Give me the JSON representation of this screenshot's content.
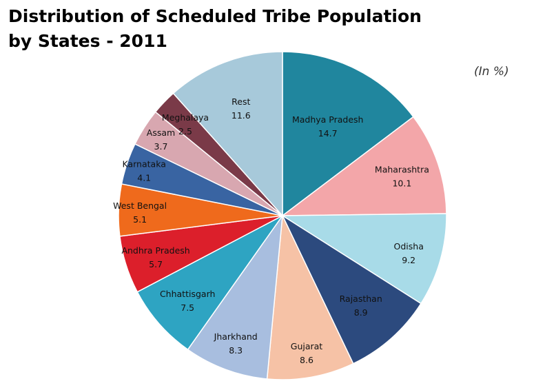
{
  "chart_data": {
    "type": "pie",
    "title_lines": [
      "Distribution of Scheduled Tribe Population",
      "by States - 2011"
    ],
    "unit": "(In %)",
    "start": "top, clockwise",
    "slices": [
      {
        "label": "Madhya Pradesh",
        "value": 14.7,
        "display": "14.7",
        "color": "#20869e"
      },
      {
        "label": "Maharashtra",
        "value": 10.1,
        "display": "10.1",
        "color": "#f3a6a9"
      },
      {
        "label": "Odisha",
        "value": 9.2,
        "display": "9.2",
        "color": "#a8dbe8"
      },
      {
        "label": "Rajasthan",
        "value": 8.9,
        "display": "8.9",
        "color": "#2c4a7e"
      },
      {
        "label": "Gujarat",
        "value": 8.6,
        "display": "8.6",
        "color": "#f6c2a6"
      },
      {
        "label": "Jharkhand",
        "value": 8.3,
        "display": "8.3",
        "color": "#a8bedf"
      },
      {
        "label": "Chhattisgarh",
        "value": 7.5,
        "display": "7.5",
        "color": "#2ea4c2"
      },
      {
        "label": "Andhra Pradesh",
        "value": 5.7,
        "display": "5.7",
        "color": "#dc1f2b"
      },
      {
        "label": "West Bengal",
        "value": 5.1,
        "display": "5.1",
        "color": "#ef6a1c"
      },
      {
        "label": "Karnataka",
        "value": 4.1,
        "display": "4.1",
        "color": "#3964a2"
      },
      {
        "label": "Assam",
        "value": 3.7,
        "display": "3.7",
        "color": "#d8a7b0"
      },
      {
        "label": "Meghalaya",
        "value": 2.5,
        "display": "2.5",
        "color": "#7a3a48"
      },
      {
        "label": "Rest",
        "value": 11.6,
        "display": "11.6",
        "color": "#a7c9da"
      }
    ]
  }
}
